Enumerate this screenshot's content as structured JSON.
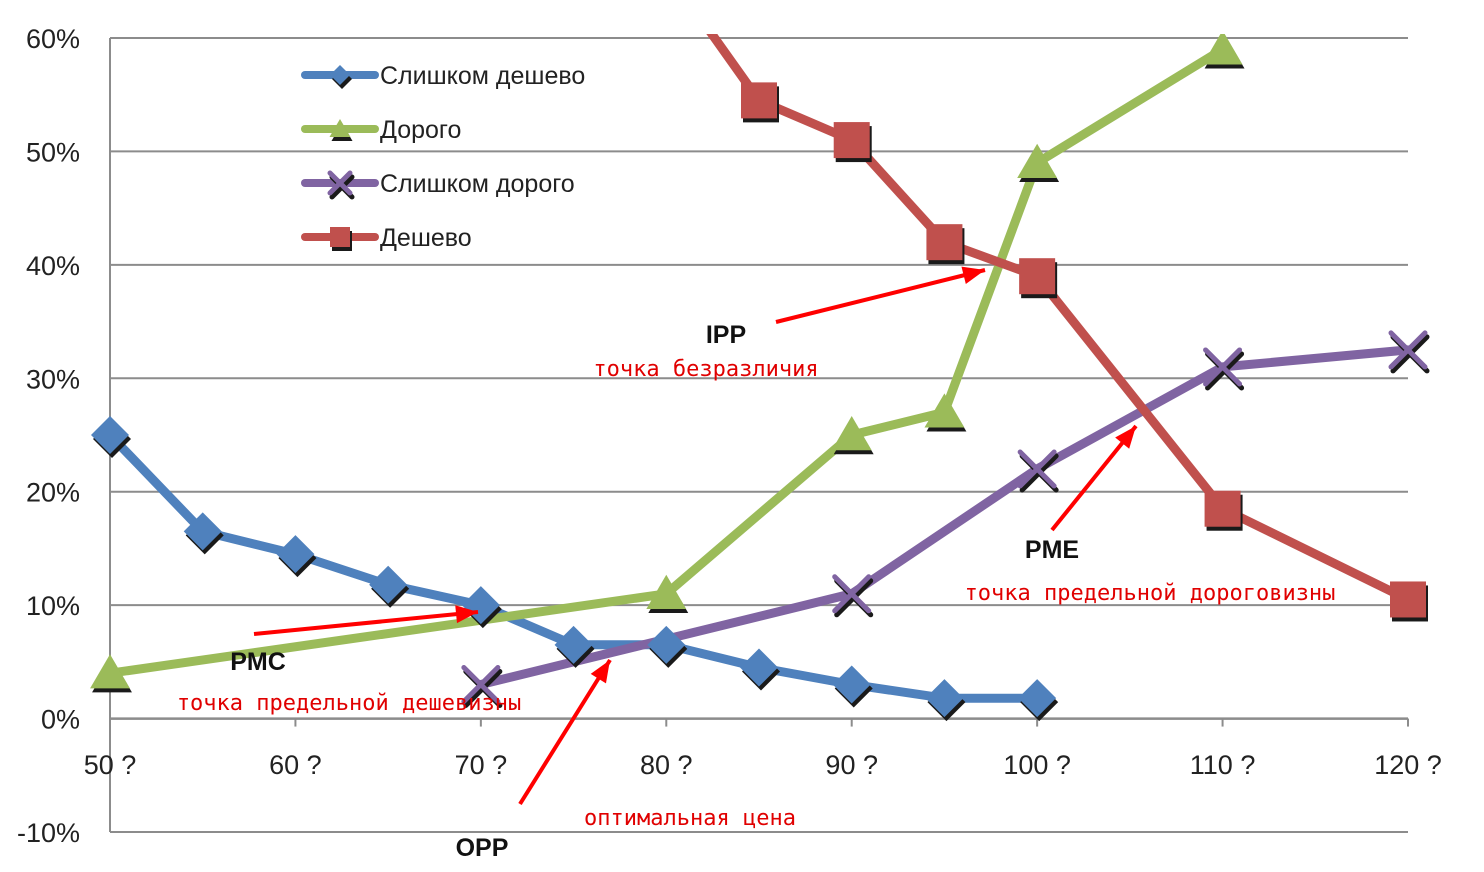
{
  "chart_data": {
    "type": "line",
    "x": [
      50,
      55,
      60,
      65,
      70,
      75,
      80,
      85,
      90,
      95,
      100,
      110,
      120
    ],
    "xticks": [
      50,
      60,
      70,
      80,
      90,
      100,
      110,
      120
    ],
    "xtick_labels": [
      "50 ?",
      "60 ?",
      "70 ?",
      "80 ?",
      "90 ?",
      "100 ?",
      "110 ?",
      "120 ?"
    ],
    "xlim": [
      50,
      120
    ],
    "ylim": [
      -0.1,
      0.6
    ],
    "yticks": [
      -0.1,
      0,
      0.1,
      0.2,
      0.3,
      0.4,
      0.5,
      0.6
    ],
    "ytick_labels": [
      "-10%",
      "0%",
      "10%",
      "20%",
      "30%",
      "40%",
      "50%",
      "60%"
    ],
    "grid": true,
    "legend_position": "top-left",
    "series": [
      {
        "name": "Слишком дешево",
        "color": "#4f81bd",
        "marker": "diamond",
        "points": [
          [
            50,
            0.25
          ],
          [
            55,
            0.165
          ],
          [
            60,
            0.145
          ],
          [
            65,
            0.118
          ],
          [
            70,
            0.1
          ],
          [
            75,
            0.065
          ],
          [
            80,
            0.065
          ],
          [
            85,
            0.045
          ],
          [
            90,
            0.03
          ],
          [
            95,
            0.018
          ],
          [
            100,
            0.018
          ]
        ]
      },
      {
        "name": "Дорого",
        "color": "#9bbb59",
        "marker": "triangle",
        "points": [
          [
            50,
            0.04
          ],
          [
            80,
            0.11
          ],
          [
            90,
            0.25
          ],
          [
            95,
            0.27
          ],
          [
            100,
            0.49
          ],
          [
            110,
            0.59
          ]
        ]
      },
      {
        "name": "Слишком дорого",
        "color": "#8064a2",
        "marker": "x",
        "points": [
          [
            70,
            0.03
          ],
          [
            90,
            0.11
          ],
          [
            100,
            0.22
          ],
          [
            110,
            0.31
          ],
          [
            120,
            0.325
          ]
        ]
      },
      {
        "name": "Дешево",
        "color": "#c0504d",
        "marker": "square",
        "points": [
          [
            80,
            0.66
          ],
          [
            85,
            0.545
          ],
          [
            90,
            0.51
          ],
          [
            95,
            0.42
          ],
          [
            100,
            0.39
          ],
          [
            110,
            0.185
          ],
          [
            120,
            0.105
          ]
        ]
      }
    ],
    "annotations": [
      {
        "code": "IPP",
        "text": "точка безразличия",
        "target": [
          97.5,
          0.395
        ]
      },
      {
        "code": "PME",
        "text": "точка предельной дороговизны",
        "target": [
          105.5,
          0.26
        ]
      },
      {
        "code": "PMC",
        "text": "точка предельной дешевизны",
        "target": [
          70,
          0.095
        ]
      },
      {
        "code": "OPP",
        "text": "оптимальная цена",
        "target": [
          77,
          0.055
        ]
      }
    ],
    "annotation_arrow_color": "#ff0000"
  }
}
